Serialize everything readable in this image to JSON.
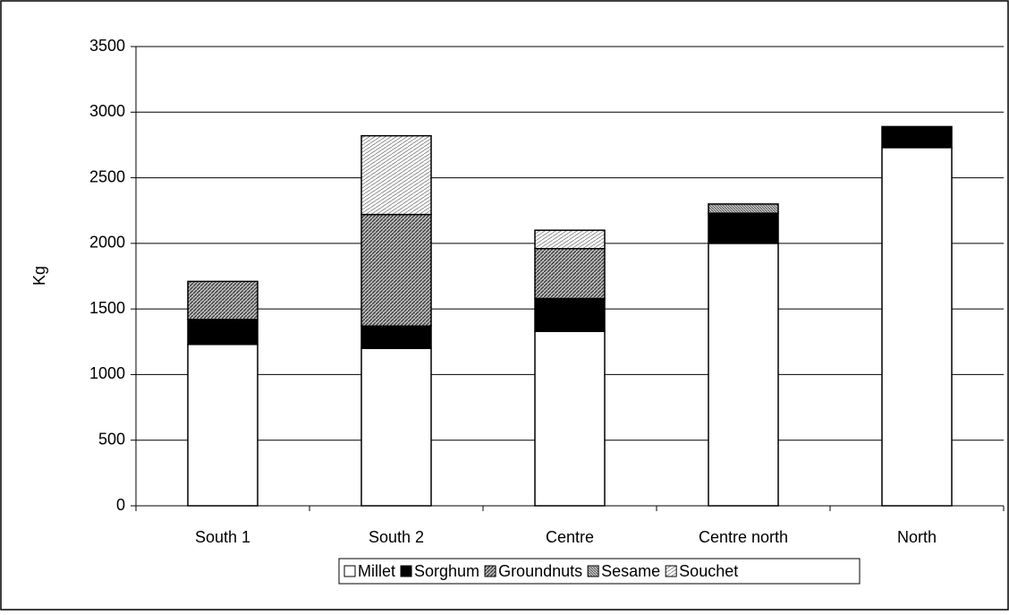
{
  "chart_data": {
    "type": "bar",
    "stacked": true,
    "ylabel": "Kg",
    "categories": [
      "South 1",
      "South 2",
      "Centre",
      "Centre north",
      "North"
    ],
    "series": [
      {
        "name": "Millet",
        "color": "#ffffff",
        "values": [
          1230,
          1200,
          1330,
          2000,
          2730
        ]
      },
      {
        "name": "Sorghum",
        "color": "#000000",
        "values": [
          190,
          170,
          250,
          230,
          160
        ]
      },
      {
        "name": "Groundnuts",
        "color": "#7a7a7a",
        "values": [
          290,
          850,
          380,
          0,
          0
        ]
      },
      {
        "name": "Sesame",
        "color": "#9a9a9a",
        "values": [
          0,
          0,
          0,
          70,
          0
        ]
      },
      {
        "name": "Souchet",
        "color": "#d0d0d0",
        "values": [
          0,
          600,
          140,
          0,
          0
        ]
      }
    ],
    "ylim": [
      0,
      3500
    ],
    "yticks": [
      0,
      500,
      1000,
      1500,
      2000,
      2500,
      3000,
      3500
    ],
    "grid": true,
    "legend": "bottom"
  }
}
